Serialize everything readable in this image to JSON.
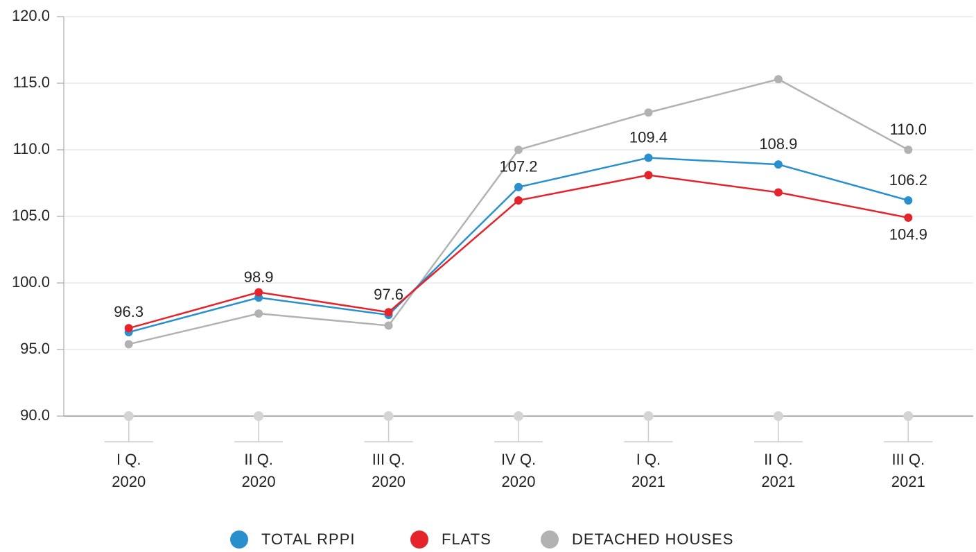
{
  "chart_data": {
    "type": "line",
    "categories": [
      [
        "I Q.",
        "2020"
      ],
      [
        "II Q.",
        "2020"
      ],
      [
        "III Q.",
        "2020"
      ],
      [
        "IV Q.",
        "2020"
      ],
      [
        "I Q.",
        "2021"
      ],
      [
        "II Q.",
        "2021"
      ],
      [
        "III Q.",
        "2021"
      ]
    ],
    "series": [
      {
        "name": "TOTAL RPPI",
        "color": "#2a8fcf",
        "values": [
          96.3,
          98.9,
          97.6,
          107.2,
          109.4,
          108.9,
          106.2
        ],
        "value_labels": [
          "96.3",
          "98.9",
          "97.6",
          "107.2",
          "109.4",
          "108.9",
          "106.2"
        ]
      },
      {
        "name": "FLATS",
        "color": "#e5232b",
        "values": [
          96.6,
          99.3,
          97.8,
          106.2,
          108.1,
          106.8,
          104.9
        ],
        "value_labels": [
          null,
          null,
          null,
          null,
          null,
          null,
          "104.9"
        ]
      },
      {
        "name": "DETACHED HOUSES",
        "color": "#b2b2b2",
        "values": [
          95.4,
          97.7,
          96.8,
          110.0,
          112.8,
          115.3,
          110.0
        ],
        "value_labels": [
          null,
          null,
          null,
          null,
          null,
          null,
          "110.0"
        ]
      }
    ],
    "ylim": [
      90,
      120
    ],
    "yticks": [
      {
        "value": 90,
        "label": "90.0"
      },
      {
        "value": 95,
        "label": "95.0"
      },
      {
        "value": 100,
        "label": "100.0"
      },
      {
        "value": 105,
        "label": "105.0"
      },
      {
        "value": 110,
        "label": "110.0"
      },
      {
        "value": 115,
        "label": "115.0"
      },
      {
        "value": 120,
        "label": "120.0"
      }
    ],
    "grid": true,
    "legend": "bottom"
  }
}
